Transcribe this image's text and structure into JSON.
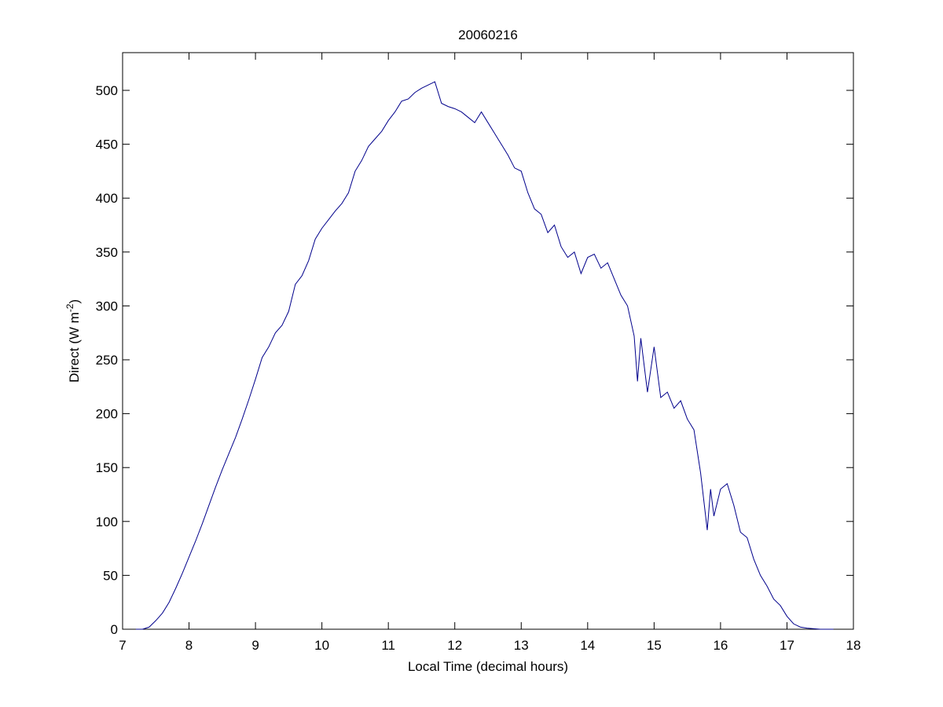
{
  "chart_data": {
    "type": "line",
    "title": "20060216",
    "xlabel": "Local Time (decimal hours)",
    "ylabel": {
      "text": "Direct (W m",
      "superscript": "-2",
      "suffix": ")"
    },
    "x": [
      7.2,
      7.3,
      7.4,
      7.5,
      7.6,
      7.7,
      7.8,
      7.9,
      8.0,
      8.1,
      8.2,
      8.3,
      8.4,
      8.5,
      8.6,
      8.7,
      8.8,
      8.9,
      9.0,
      9.1,
      9.2,
      9.3,
      9.4,
      9.5,
      9.6,
      9.7,
      9.8,
      9.9,
      10.0,
      10.1,
      10.2,
      10.3,
      10.4,
      10.5,
      10.6,
      10.7,
      10.8,
      10.9,
      11.0,
      11.1,
      11.2,
      11.3,
      11.4,
      11.5,
      11.6,
      11.7,
      11.8,
      11.9,
      12.0,
      12.1,
      12.2,
      12.3,
      12.4,
      12.5,
      12.6,
      12.7,
      12.8,
      12.9,
      13.0,
      13.1,
      13.2,
      13.3,
      13.4,
      13.5,
      13.6,
      13.7,
      13.8,
      13.9,
      14.0,
      14.1,
      14.2,
      14.3,
      14.4,
      14.5,
      14.6,
      14.7,
      14.75,
      14.8,
      14.9,
      15.0,
      15.1,
      15.2,
      15.3,
      15.4,
      15.5,
      15.6,
      15.7,
      15.8,
      15.85,
      15.9,
      16.0,
      16.1,
      16.2,
      16.3,
      16.4,
      16.5,
      16.6,
      16.7,
      16.8,
      16.9,
      17.0,
      17.1,
      17.2,
      17.3,
      17.5,
      17.7
    ],
    "series": [
      {
        "color": "#00008b",
        "values": [
          0,
          0,
          2,
          8,
          15,
          25,
          38,
          52,
          67,
          82,
          98,
          115,
          132,
          148,
          163,
          178,
          195,
          213,
          232,
          252,
          262,
          275,
          282,
          295,
          320,
          328,
          342,
          362,
          372,
          380,
          388,
          395,
          405,
          425,
          435,
          448,
          455,
          462,
          472,
          480,
          490,
          492,
          498,
          502,
          505,
          508,
          488,
          485,
          483,
          480,
          475,
          470,
          480,
          470,
          460,
          450,
          440,
          428,
          425,
          405,
          390,
          385,
          368,
          375,
          355,
          345,
          350,
          330,
          345,
          348,
          335,
          340,
          325,
          310,
          300,
          272,
          230,
          270,
          220,
          262,
          215,
          220,
          205,
          212,
          195,
          185,
          145,
          92,
          130,
          105,
          130,
          135,
          115,
          90,
          85,
          65,
          50,
          40,
          28,
          22,
          12,
          5,
          2,
          1,
          0,
          0
        ]
      }
    ],
    "xlim": [
      7,
      18
    ],
    "xticks": [
      7,
      8,
      9,
      10,
      11,
      12,
      13,
      14,
      15,
      16,
      17,
      18
    ],
    "ylim": [
      0,
      535
    ],
    "yticks": [
      0,
      50,
      100,
      150,
      200,
      250,
      300,
      350,
      400,
      450,
      500
    ]
  }
}
